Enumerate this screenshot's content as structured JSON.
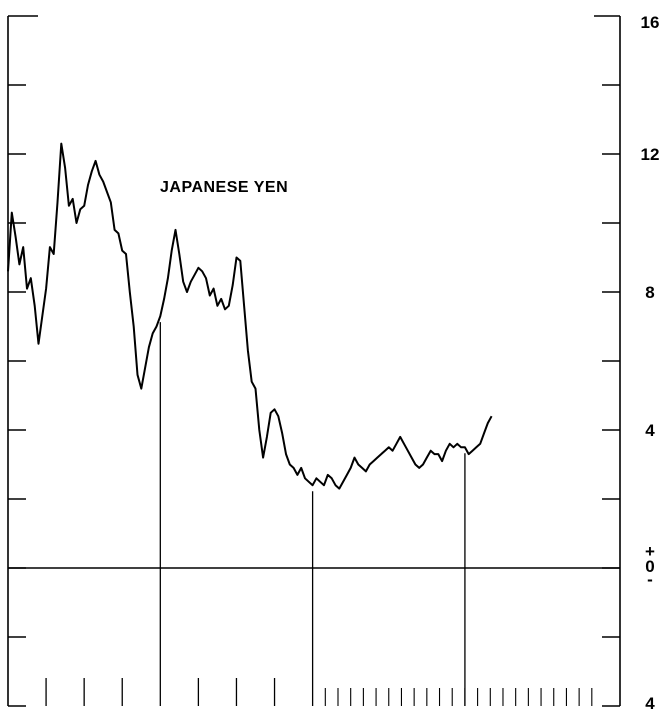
{
  "chart_data": {
    "type": "line",
    "title": "",
    "xlabel": "",
    "ylabel": "",
    "ylim": [
      -4,
      16
    ],
    "y_ticks": [
      -4,
      -2,
      0,
      2,
      4,
      6,
      8,
      10,
      12,
      14,
      16
    ],
    "right_tick_labels": [
      {
        "value": 16,
        "text": "16"
      },
      {
        "value": 12,
        "text": "12"
      },
      {
        "value": 8,
        "text": "8"
      },
      {
        "value": 4,
        "text": "4"
      },
      {
        "value": 0,
        "text": "+\n0\n-"
      },
      {
        "value": -4,
        "text": "4"
      }
    ],
    "grid": false,
    "zero_line": true,
    "period_dividers_x": [
      40,
      80,
      120
    ],
    "xlim": [
      0,
      156
    ],
    "x_ticks_major": [
      10,
      20,
      30,
      50,
      60,
      70
    ],
    "x_ticks_minor_start": 80,
    "x_ticks_minor_step": 3.333,
    "x_ticks_minor_end": 156,
    "series": [
      {
        "name": "JAPANESE YEN",
        "points": [
          [
            0,
            8.6
          ],
          [
            1,
            10.3
          ],
          [
            2,
            9.6
          ],
          [
            3,
            8.8
          ],
          [
            4,
            9.3
          ],
          [
            5,
            8.1
          ],
          [
            6,
            8.4
          ],
          [
            7,
            7.6
          ],
          [
            8,
            6.5
          ],
          [
            9,
            7.3
          ],
          [
            10,
            8.1
          ],
          [
            11,
            9.3
          ],
          [
            12,
            9.1
          ],
          [
            13,
            10.6
          ],
          [
            14,
            12.3
          ],
          [
            15,
            11.6
          ],
          [
            16,
            10.5
          ],
          [
            17,
            10.7
          ],
          [
            18,
            10.0
          ],
          [
            19,
            10.4
          ],
          [
            20,
            10.5
          ],
          [
            21,
            11.1
          ],
          [
            22,
            11.5
          ],
          [
            23,
            11.8
          ],
          [
            24,
            11.4
          ],
          [
            25,
            11.2
          ],
          [
            26,
            10.9
          ],
          [
            27,
            10.6
          ],
          [
            28,
            9.8
          ],
          [
            29,
            9.7
          ],
          [
            30,
            9.2
          ],
          [
            31,
            9.1
          ],
          [
            32,
            8.0
          ],
          [
            33,
            7.0
          ],
          [
            34,
            5.6
          ],
          [
            35,
            5.2
          ],
          [
            36,
            5.8
          ],
          [
            37,
            6.4
          ],
          [
            38,
            6.8
          ],
          [
            39,
            7.0
          ],
          [
            40,
            7.3
          ],
          [
            41,
            7.8
          ],
          [
            42,
            8.4
          ],
          [
            43,
            9.2
          ],
          [
            44,
            9.8
          ],
          [
            45,
            9.1
          ],
          [
            46,
            8.3
          ],
          [
            47,
            8.0
          ],
          [
            48,
            8.3
          ],
          [
            49,
            8.5
          ],
          [
            50,
            8.7
          ],
          [
            51,
            8.6
          ],
          [
            52,
            8.4
          ],
          [
            53,
            7.9
          ],
          [
            54,
            8.1
          ],
          [
            55,
            7.6
          ],
          [
            56,
            7.8
          ],
          [
            57,
            7.5
          ],
          [
            58,
            7.6
          ],
          [
            59,
            8.2
          ],
          [
            60,
            9.0
          ],
          [
            61,
            8.9
          ],
          [
            62,
            7.6
          ],
          [
            63,
            6.3
          ],
          [
            64,
            5.4
          ],
          [
            65,
            5.2
          ],
          [
            66,
            4.0
          ],
          [
            67,
            3.2
          ],
          [
            68,
            3.8
          ],
          [
            69,
            4.5
          ],
          [
            70,
            4.6
          ],
          [
            71,
            4.4
          ],
          [
            72,
            3.9
          ],
          [
            73,
            3.3
          ],
          [
            74,
            3.0
          ],
          [
            75,
            2.9
          ],
          [
            76,
            2.7
          ],
          [
            77,
            2.9
          ],
          [
            78,
            2.6
          ],
          [
            79,
            2.5
          ],
          [
            80,
            2.4
          ],
          [
            81,
            2.6
          ],
          [
            82,
            2.5
          ],
          [
            83,
            2.4
          ],
          [
            84,
            2.7
          ],
          [
            85,
            2.6
          ],
          [
            86,
            2.4
          ],
          [
            87,
            2.3
          ],
          [
            88,
            2.5
          ],
          [
            89,
            2.7
          ],
          [
            90,
            2.9
          ],
          [
            91,
            3.2
          ],
          [
            92,
            3.0
          ],
          [
            93,
            2.9
          ],
          [
            94,
            2.8
          ],
          [
            95,
            3.0
          ],
          [
            96,
            3.1
          ],
          [
            97,
            3.2
          ],
          [
            98,
            3.3
          ],
          [
            99,
            3.4
          ],
          [
            100,
            3.5
          ],
          [
            101,
            3.4
          ],
          [
            102,
            3.6
          ],
          [
            103,
            3.8
          ],
          [
            104,
            3.6
          ],
          [
            105,
            3.4
          ],
          [
            106,
            3.2
          ],
          [
            107,
            3.0
          ],
          [
            108,
            2.9
          ],
          [
            109,
            3.0
          ],
          [
            110,
            3.2
          ],
          [
            111,
            3.4
          ],
          [
            112,
            3.3
          ],
          [
            113,
            3.3
          ],
          [
            114,
            3.1
          ],
          [
            115,
            3.4
          ],
          [
            116,
            3.6
          ],
          [
            117,
            3.5
          ],
          [
            118,
            3.6
          ],
          [
            119,
            3.5
          ],
          [
            120,
            3.5
          ],
          [
            121,
            3.3
          ],
          [
            122,
            3.4
          ],
          [
            123,
            3.5
          ],
          [
            124,
            3.6
          ],
          [
            125,
            3.9
          ],
          [
            126,
            4.2
          ],
          [
            127,
            4.4
          ]
        ]
      }
    ]
  }
}
